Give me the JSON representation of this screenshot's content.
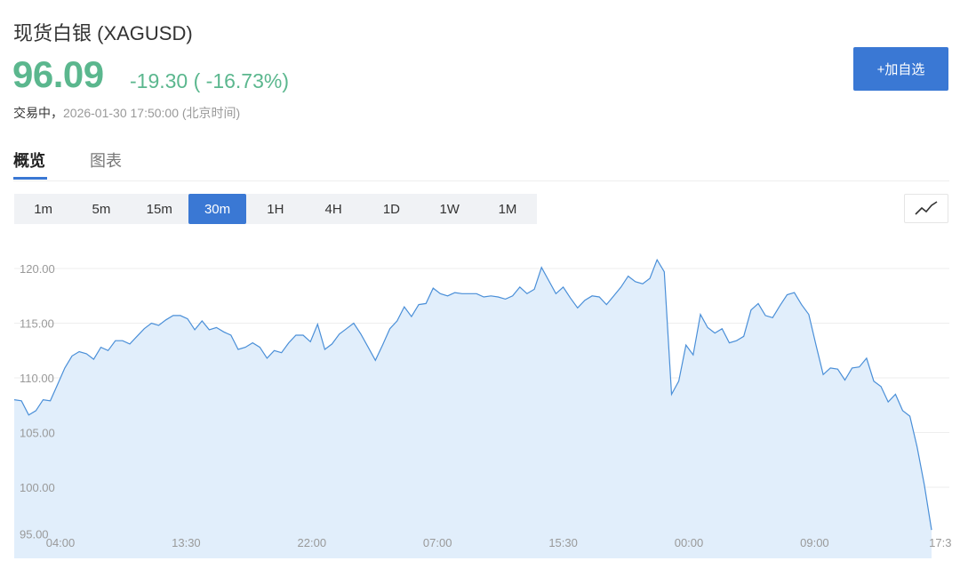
{
  "header": {
    "title": "现货白银 (XAGUSD)",
    "price": "96.09",
    "change": "-19.30 ( -16.73%)",
    "status_label": "交易中，",
    "timestamp": "2026-01-30 17:50:00",
    "timezone": "(北京时间)",
    "add_button": "+加自选"
  },
  "tabs": [
    {
      "label": "概览",
      "active": true
    },
    {
      "label": "图表",
      "active": false
    }
  ],
  "timeframes": [
    {
      "label": "1m"
    },
    {
      "label": "5m"
    },
    {
      "label": "15m"
    },
    {
      "label": "30m",
      "active": true
    },
    {
      "label": "1H"
    },
    {
      "label": "4H"
    },
    {
      "label": "1D"
    },
    {
      "label": "1W"
    },
    {
      "label": "1M"
    }
  ],
  "chart_type_icon": "line-chart-icon",
  "colors": {
    "up_down": "#5bb78e",
    "accent": "#3a78d4",
    "line": "#4a8fd8",
    "fill": "#e1eefb"
  },
  "chart_data": {
    "type": "area",
    "interval": "30m",
    "ylim": [
      95,
      121
    ],
    "y_ticks": [
      "120.00",
      "115.00",
      "110.00",
      "105.00",
      "100.00",
      "95.00"
    ],
    "x_ticks": [
      "04:00",
      "13:30",
      "22:00",
      "07:00",
      "15:30",
      "00:00",
      "09:00",
      "17:3"
    ],
    "grid": true,
    "values": [
      108.0,
      107.9,
      106.6,
      107.0,
      108.0,
      107.9,
      109.4,
      110.9,
      112.0,
      112.4,
      112.2,
      111.7,
      112.8,
      112.5,
      113.4,
      113.4,
      113.1,
      113.8,
      114.5,
      115.0,
      114.8,
      115.3,
      115.7,
      115.7,
      115.4,
      114.4,
      115.2,
      114.4,
      114.6,
      114.2,
      113.9,
      112.6,
      112.8,
      113.2,
      112.8,
      111.8,
      112.5,
      112.3,
      113.2,
      113.9,
      113.9,
      113.3,
      114.9,
      112.6,
      113.1,
      114.0,
      114.5,
      115.0,
      114.0,
      112.8,
      111.6,
      113.0,
      114.5,
      115.2,
      116.5,
      115.6,
      116.7,
      116.8,
      118.2,
      117.7,
      117.5,
      117.8,
      117.7,
      117.7,
      117.7,
      117.4,
      117.5,
      117.4,
      117.2,
      117.5,
      118.3,
      117.7,
      118.1,
      120.1,
      118.9,
      117.7,
      118.3,
      117.3,
      116.4,
      117.1,
      117.5,
      117.4,
      116.7,
      117.5,
      118.3,
      119.3,
      118.8,
      118.6,
      119.1,
      120.8,
      119.7,
      108.5,
      109.7,
      113.0,
      112.1,
      115.8,
      114.6,
      114.1,
      114.5,
      113.2,
      113.4,
      113.8,
      116.2,
      116.8,
      115.7,
      115.5,
      116.6,
      117.6,
      117.8,
      116.7,
      115.8,
      113.0,
      110.3,
      110.9,
      110.8,
      109.8,
      110.9,
      111.0,
      111.8,
      109.7,
      109.2,
      107.8,
      108.5,
      107.0,
      106.5,
      103.7,
      100.2,
      96.09
    ]
  }
}
